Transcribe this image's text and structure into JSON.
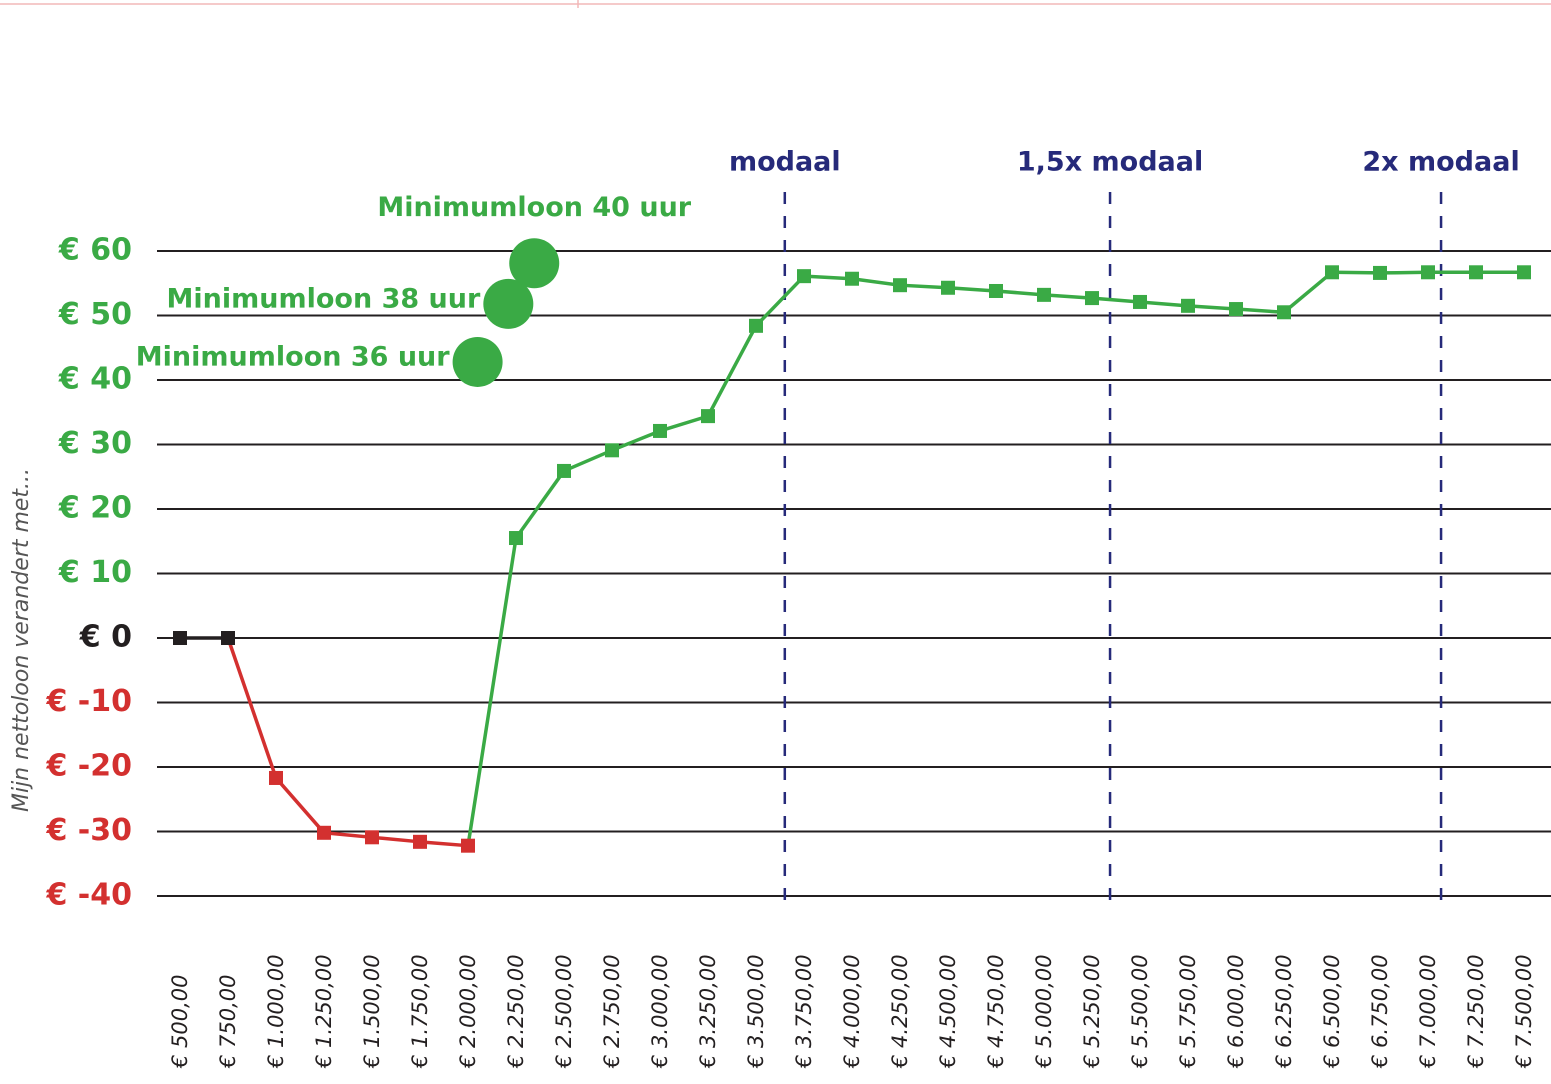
{
  "chart_data": {
    "type": "line",
    "y_label": "Mijn nettoloon verandert met...",
    "categories": [
      "€ 500,00",
      "€ 750,00",
      "€ 1.000,00",
      "€ 1.250,00",
      "€ 1.500,00",
      "€ 1.750,00",
      "€ 2.000,00",
      "€ 2.250,00",
      "€ 2.500,00",
      "€ 2.750,00",
      "€ 3.000,00",
      "€ 3.250,00",
      "€ 3.500,00",
      "€ 3.750,00",
      "€ 4.000,00",
      "€ 4.250,00",
      "€ 4.500,00",
      "€ 4.750,00",
      "€ 5.000,00",
      "€ 5.250,00",
      "€ 5.500,00",
      "€ 5.750,00",
      "€ 6.000,00",
      "€ 6.250,00",
      "€ 6.500,00",
      "€ 6.750,00",
      "€ 7.000,00",
      "€ 7.250,00",
      "€ 7.500,00"
    ],
    "category_start": 500,
    "category_step": 250,
    "values": [
      0,
      0,
      -21.7,
      -30.2,
      -30.9,
      -31.6,
      -32.2,
      15.5,
      25.9,
      29.1,
      32.1,
      34.4,
      48.4,
      56.1,
      55.7,
      54.7,
      54.3,
      53.8,
      53.2,
      52.7,
      52.1,
      51.5,
      51.0,
      50.5,
      56.7,
      56.6,
      56.7,
      56.7,
      56.7
    ],
    "colors": {
      "positive": "#3aaa45",
      "zero": "#231f20",
      "negative": "#d3302f"
    },
    "ylim": [
      -40,
      60
    ],
    "yticks": [
      {
        "value": -40,
        "label": "€ -40"
      },
      {
        "value": -30,
        "label": "€ -30"
      },
      {
        "value": -20,
        "label": "€ -20"
      },
      {
        "value": -10,
        "label": "€ -10"
      },
      {
        "value": 0,
        "label": "€ 0"
      },
      {
        "value": 10,
        "label": "€ 10"
      },
      {
        "value": 20,
        "label": "€ 20"
      },
      {
        "value": 30,
        "label": "€ 30"
      },
      {
        "value": 40,
        "label": "€ 40"
      },
      {
        "value": 50,
        "label": "€ 50"
      },
      {
        "value": 60,
        "label": "€ 60"
      }
    ],
    "grid": true,
    "reference_lines": [
      {
        "label": "modaal",
        "x": 3650
      },
      {
        "label": "1,5x modaal",
        "x": 5344
      },
      {
        "label": "2x modaal",
        "x": 7068
      }
    ],
    "reference_color": "#262a7a",
    "bubbles": [
      {
        "label": "Minimumloon 36 uur",
        "x": 2050,
        "y": 42.8
      },
      {
        "label": "Minimumloon 38 uur",
        "x": 2210,
        "y": 51.8
      },
      {
        "label": "Minimumloon 40 uur",
        "x": 2345,
        "y": 58.1
      }
    ]
  }
}
